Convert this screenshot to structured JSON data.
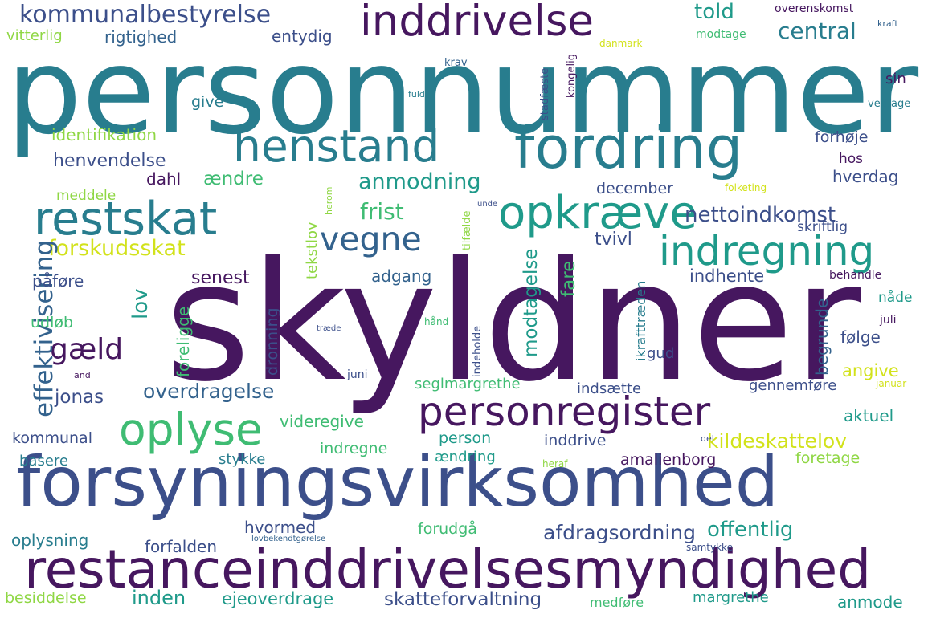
{
  "palette": {
    "purple_dark": "#46175f",
    "indigo": "#3c4f8a",
    "blue_slate": "#33628d",
    "teal": "#287d8e",
    "teal_green": "#1f9a8a",
    "green": "#3fbc73",
    "lime": "#8fd744",
    "yellow": "#d2e21b"
  },
  "words": [
    "personnummer",
    "skyldner",
    "forsyningsvirksomhed",
    "restanceinddrivelsesmyndighed",
    "fordring",
    "henstand",
    "restskat",
    "opkræve",
    "indregning",
    "inddrivelse",
    "personregister",
    "oplyse",
    "vegne",
    "gæld",
    "kommunalbestyrelse",
    "rigtighed",
    "entydig",
    "vitterlig",
    "told",
    "central",
    "overenskomst",
    "kraft",
    "modtage",
    "danmark",
    "krav",
    "kongelig",
    "stadfæste",
    "fuld",
    "sin",
    "vedtage",
    "identifikation",
    "give",
    "henvendelse",
    "dahl",
    "forhøje",
    "hos",
    "hverdag",
    "ændre",
    "anmodning",
    "december",
    "folketing",
    "meddele",
    "herom",
    "tekstlov",
    "tilfælde",
    "unde",
    "skriftlig",
    "frist",
    "nettoindkomst",
    "forskudsskat",
    "effektivisering",
    "lov",
    "tvivl",
    "ikrafttræden",
    "påføre",
    "senest",
    "adgang",
    "modtagelse",
    "fare",
    "indhente",
    "behandle",
    "nåde",
    "udløb",
    "foreligge",
    "dronning",
    "træde",
    "hånd",
    "indeholde",
    "juli",
    "gud",
    "følge",
    "begrunde",
    "and",
    "juni",
    "angive",
    "januar",
    "jonas",
    "overdragelse",
    "seglmargrethe",
    "indsætte",
    "gennemføre",
    "aktuel",
    "videregive",
    "person",
    "inddrive",
    "kildeskattelov",
    "del",
    "kommunal",
    "basere",
    "stykke",
    "indregne",
    "ændring",
    "heraf",
    "amalienborg",
    "foretage",
    "hvormed",
    "oplysning",
    "forudgå",
    "afdragsordning",
    "offentlig",
    "forfalden",
    "lovbekendtgørelse",
    "samtykke",
    "besiddelse",
    "inden",
    "ejeoverdrage",
    "skatteforvaltning",
    "medføre",
    "margrethe",
    "anmode"
  ]
}
